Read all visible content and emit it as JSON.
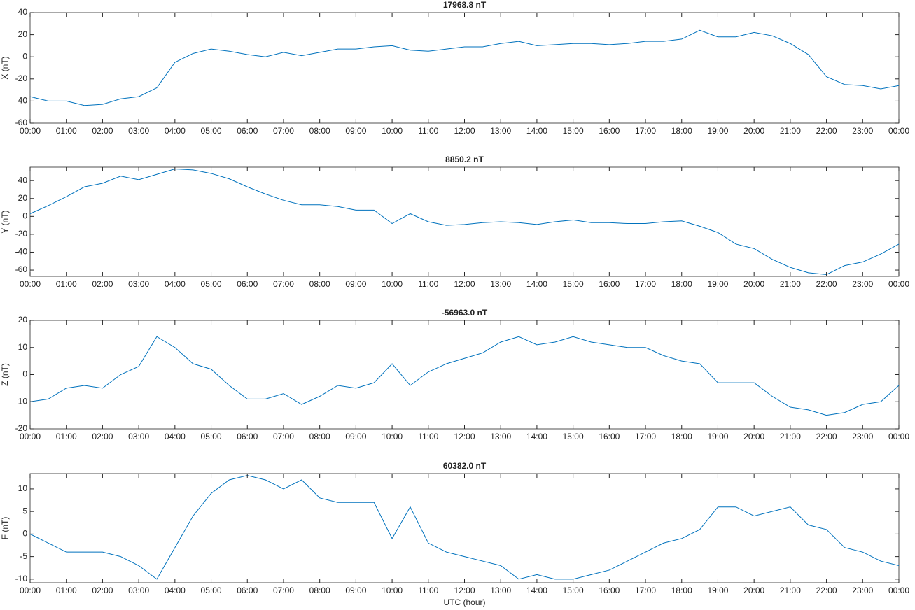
{
  "chart_data": [
    {
      "type": "line",
      "title": "17968.8 nT",
      "ylabel": "X (nT)",
      "color": "#0072bd",
      "x": [
        0,
        0.5,
        1,
        1.5,
        2,
        2.5,
        3,
        3.5,
        4,
        4.5,
        5,
        5.5,
        6,
        6.5,
        7,
        7.5,
        8,
        8.5,
        9,
        9.5,
        10,
        10.5,
        11,
        11.5,
        12,
        12.5,
        13,
        13.5,
        14,
        14.5,
        15,
        15.5,
        16,
        16.5,
        17,
        17.5,
        18,
        18.5,
        19,
        19.5,
        20,
        20.5,
        21,
        21.5,
        22,
        22.5,
        23,
        23.5,
        24
      ],
      "values": [
        -36,
        -40,
        -40,
        -44,
        -43,
        -38,
        -36,
        -28,
        -5,
        3,
        7,
        5,
        2,
        0,
        4,
        1,
        4,
        7,
        7,
        9,
        10,
        6,
        5,
        7,
        9,
        9,
        12,
        14,
        10,
        11,
        12,
        12,
        11,
        12,
        14,
        14,
        16,
        24,
        18,
        18,
        22,
        19,
        12,
        2,
        -18,
        -25,
        -26,
        -29,
        -26
      ],
      "xlim": [
        0,
        24
      ],
      "ylim": [
        -60,
        40
      ],
      "yticks": [
        -60,
        -40,
        -20,
        0,
        20,
        40
      ],
      "xticks": [
        {
          "value": 0,
          "label": "00:00"
        },
        {
          "value": 1,
          "label": "01:00"
        },
        {
          "value": 2,
          "label": "02:00"
        },
        {
          "value": 3,
          "label": "03:00"
        },
        {
          "value": 4,
          "label": "04:00"
        },
        {
          "value": 5,
          "label": "05:00"
        },
        {
          "value": 6,
          "label": "06:00"
        },
        {
          "value": 7,
          "label": "07:00"
        },
        {
          "value": 8,
          "label": "08:00"
        },
        {
          "value": 9,
          "label": "09:00"
        },
        {
          "value": 10,
          "label": "10:00"
        },
        {
          "value": 11,
          "label": "11:00"
        },
        {
          "value": 12,
          "label": "12:00"
        },
        {
          "value": 13,
          "label": "13:00"
        },
        {
          "value": 14,
          "label": "14:00"
        },
        {
          "value": 15,
          "label": "15:00"
        },
        {
          "value": 16,
          "label": "16:00"
        },
        {
          "value": 17,
          "label": "17:00"
        },
        {
          "value": 18,
          "label": "18:00"
        },
        {
          "value": 19,
          "label": "19:00"
        },
        {
          "value": 20,
          "label": "20:00"
        },
        {
          "value": 21,
          "label": "21:00"
        },
        {
          "value": 22,
          "label": "22:00"
        },
        {
          "value": 23,
          "label": "23:00"
        },
        {
          "value": 24,
          "label": "00:00"
        }
      ]
    },
    {
      "type": "line",
      "title": "8850.2 nT",
      "ylabel": "Y (nT)",
      "color": "#0072bd",
      "x": [
        0,
        0.5,
        1,
        1.5,
        2,
        2.5,
        3,
        3.5,
        4,
        4.5,
        5,
        5.5,
        6,
        6.5,
        7,
        7.5,
        8,
        8.5,
        9,
        9.5,
        10,
        10.5,
        11,
        11.5,
        12,
        12.5,
        13,
        13.5,
        14,
        14.5,
        15,
        15.5,
        16,
        16.5,
        17,
        17.5,
        18,
        18.5,
        19,
        19.5,
        20,
        20.5,
        21,
        21.5,
        22,
        22.5,
        23,
        23.5,
        24
      ],
      "values": [
        3,
        12,
        22,
        33,
        37,
        45,
        41,
        47,
        53,
        52,
        48,
        42,
        33,
        25,
        18,
        13,
        13,
        11,
        7,
        7,
        -8,
        3,
        -6,
        -10,
        -9,
        -7,
        -6,
        -7,
        -9,
        -6,
        -4,
        -7,
        -7,
        -8,
        -8,
        -6,
        -5,
        -11,
        -18,
        -31,
        -36,
        -48,
        -57,
        -63,
        -65,
        -55,
        -51,
        -42,
        -31
      ],
      "xlim": [
        0,
        24
      ],
      "ylim": [
        -67,
        55
      ],
      "yticks": [
        -60,
        -40,
        -20,
        0,
        20,
        40
      ],
      "xticks": [
        {
          "value": 0,
          "label": "00:00"
        },
        {
          "value": 1,
          "label": "01:00"
        },
        {
          "value": 2,
          "label": "02:00"
        },
        {
          "value": 3,
          "label": "03:00"
        },
        {
          "value": 4,
          "label": "04:00"
        },
        {
          "value": 5,
          "label": "05:00"
        },
        {
          "value": 6,
          "label": "06:00"
        },
        {
          "value": 7,
          "label": "07:00"
        },
        {
          "value": 8,
          "label": "08:00"
        },
        {
          "value": 9,
          "label": "09:00"
        },
        {
          "value": 10,
          "label": "10:00"
        },
        {
          "value": 11,
          "label": "11:00"
        },
        {
          "value": 12,
          "label": "12:00"
        },
        {
          "value": 13,
          "label": "13:00"
        },
        {
          "value": 14,
          "label": "14:00"
        },
        {
          "value": 15,
          "label": "15:00"
        },
        {
          "value": 16,
          "label": "16:00"
        },
        {
          "value": 17,
          "label": "17:00"
        },
        {
          "value": 18,
          "label": "18:00"
        },
        {
          "value": 19,
          "label": "19:00"
        },
        {
          "value": 20,
          "label": "20:00"
        },
        {
          "value": 21,
          "label": "21:00"
        },
        {
          "value": 22,
          "label": "22:00"
        },
        {
          "value": 23,
          "label": "23:00"
        },
        {
          "value": 24,
          "label": "00:00"
        }
      ]
    },
    {
      "type": "line",
      "title": "-56963.0 nT",
      "ylabel": "Z (nT)",
      "color": "#0072bd",
      "x": [
        0,
        0.5,
        1,
        1.5,
        2,
        2.5,
        3,
        3.5,
        4,
        4.5,
        5,
        5.5,
        6,
        6.5,
        7,
        7.5,
        8,
        8.5,
        9,
        9.5,
        10,
        10.5,
        11,
        11.5,
        12,
        12.5,
        13,
        13.5,
        14,
        14.5,
        15,
        15.5,
        16,
        16.5,
        17,
        17.5,
        18,
        18.5,
        19,
        19.5,
        20,
        20.5,
        21,
        21.5,
        22,
        22.5,
        23,
        23.5,
        24
      ],
      "values": [
        -10,
        -9,
        -5,
        -4,
        -5,
        0,
        3,
        14,
        10,
        4,
        2,
        -4,
        -9,
        -9,
        -7,
        -11,
        -8,
        -4,
        -5,
        -3,
        4,
        -4,
        1,
        4,
        6,
        8,
        12,
        14,
        11,
        12,
        14,
        12,
        11,
        10,
        10,
        7,
        5,
        4,
        -3,
        -3,
        -3,
        -8,
        -12,
        -13,
        -15,
        -14,
        -11,
        -10,
        -4
      ],
      "xlim": [
        0,
        24
      ],
      "ylim": [
        -20,
        20
      ],
      "yticks": [
        -20,
        -10,
        0,
        10,
        20
      ],
      "xticks": [
        {
          "value": 0,
          "label": "00:00"
        },
        {
          "value": 1,
          "label": "01:00"
        },
        {
          "value": 2,
          "label": "02:00"
        },
        {
          "value": 3,
          "label": "03:00"
        },
        {
          "value": 4,
          "label": "04:00"
        },
        {
          "value": 5,
          "label": "05:00"
        },
        {
          "value": 6,
          "label": "06:00"
        },
        {
          "value": 7,
          "label": "07:00"
        },
        {
          "value": 8,
          "label": "08:00"
        },
        {
          "value": 9,
          "label": "09:00"
        },
        {
          "value": 10,
          "label": "10:00"
        },
        {
          "value": 11,
          "label": "11:00"
        },
        {
          "value": 12,
          "label": "12:00"
        },
        {
          "value": 13,
          "label": "13:00"
        },
        {
          "value": 14,
          "label": "14:00"
        },
        {
          "value": 15,
          "label": "15:00"
        },
        {
          "value": 16,
          "label": "16:00"
        },
        {
          "value": 17,
          "label": "17:00"
        },
        {
          "value": 18,
          "label": "18:00"
        },
        {
          "value": 19,
          "label": "19:00"
        },
        {
          "value": 20,
          "label": "20:00"
        },
        {
          "value": 21,
          "label": "21:00"
        },
        {
          "value": 22,
          "label": "22:00"
        },
        {
          "value": 23,
          "label": "23:00"
        },
        {
          "value": 24,
          "label": "00:00"
        }
      ]
    },
    {
      "type": "line",
      "title": "60382.0 nT",
      "ylabel": "F (nT)",
      "xlabel": "UTC (hour)",
      "color": "#0072bd",
      "x": [
        0,
        0.5,
        1,
        1.5,
        2,
        2.5,
        3,
        3.5,
        4,
        4.5,
        5,
        5.5,
        6,
        6.5,
        7,
        7.5,
        8,
        8.5,
        9,
        9.5,
        10,
        10.5,
        11,
        11.5,
        12,
        12.5,
        13,
        13.5,
        14,
        14.5,
        15,
        15.5,
        16,
        16.5,
        17,
        17.5,
        18,
        18.5,
        19,
        19.5,
        20,
        20.5,
        21,
        21.5,
        22,
        22.5,
        23,
        23.5,
        24
      ],
      "values": [
        0,
        -2,
        -4,
        -4,
        -4,
        -5,
        -7,
        -10,
        -3,
        4,
        9,
        12,
        13,
        12,
        10,
        12,
        8,
        7,
        7,
        7,
        -1,
        6,
        -2,
        -4,
        -5,
        -6,
        -7,
        -10,
        -9,
        -10,
        -10,
        -9,
        -8,
        -6,
        -4,
        -2,
        -1,
        1,
        6,
        6,
        4,
        5,
        6,
        2,
        1,
        -3,
        -4,
        -6,
        -7
      ],
      "xlim": [
        0,
        24
      ],
      "ylim": [
        -10.8,
        13.4
      ],
      "yticks": [
        -10,
        -5,
        0,
        5,
        10
      ],
      "xticks": [
        {
          "value": 0,
          "label": "00:00"
        },
        {
          "value": 1,
          "label": "01:00"
        },
        {
          "value": 2,
          "label": "02:00"
        },
        {
          "value": 3,
          "label": "03:00"
        },
        {
          "value": 4,
          "label": "04:00"
        },
        {
          "value": 5,
          "label": "05:00"
        },
        {
          "value": 6,
          "label": "06:00"
        },
        {
          "value": 7,
          "label": "07:00"
        },
        {
          "value": 8,
          "label": "08:00"
        },
        {
          "value": 9,
          "label": "09:00"
        },
        {
          "value": 10,
          "label": "10:00"
        },
        {
          "value": 11,
          "label": "11:00"
        },
        {
          "value": 12,
          "label": "12:00"
        },
        {
          "value": 13,
          "label": "13:00"
        },
        {
          "value": 14,
          "label": "14:00"
        },
        {
          "value": 15,
          "label": "15:00"
        },
        {
          "value": 16,
          "label": "16:00"
        },
        {
          "value": 17,
          "label": "17:00"
        },
        {
          "value": 18,
          "label": "18:00"
        },
        {
          "value": 19,
          "label": "19:00"
        },
        {
          "value": 20,
          "label": "20:00"
        },
        {
          "value": 21,
          "label": "21:00"
        },
        {
          "value": 22,
          "label": "22:00"
        },
        {
          "value": 23,
          "label": "23:00"
        },
        {
          "value": 24,
          "label": "00:00"
        }
      ]
    }
  ]
}
